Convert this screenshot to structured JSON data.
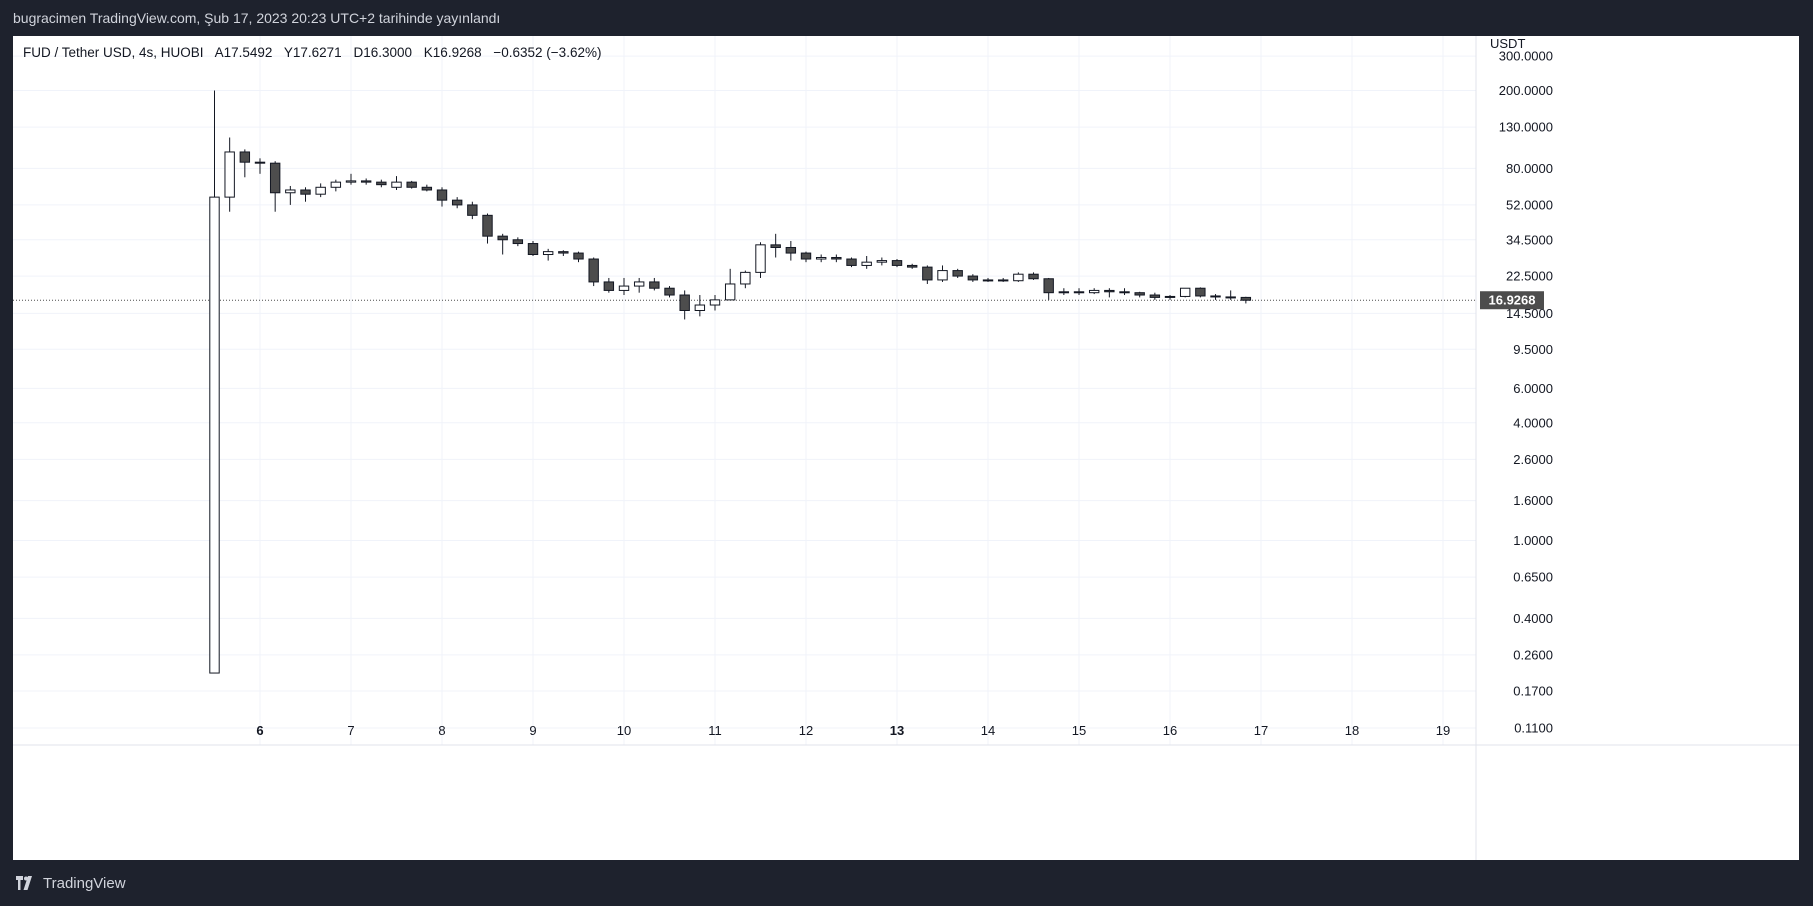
{
  "caption": "bugracimen TradingView.com, Şub 17, 2023 20:23 UTC+2 tarihinde yayınlandı",
  "legend": {
    "symbol": "FUD / Tether USD, 4s, HUOBI",
    "open": "A17.5492",
    "high": "Y17.6271",
    "low": "D16.3000",
    "close": "K16.9268",
    "change": "−0.6352 (−3.62%)"
  },
  "footer": {
    "brand": "TradingView"
  },
  "colors": {
    "up_fill": "#ffffff",
    "down_fill": "#4d4d4d",
    "wick": "#131722",
    "grid": "#f0f3fa",
    "axis_text": "#131722",
    "price_tag": "#4d4d4d"
  },
  "chart_data": {
    "type": "candlestick",
    "scale": "log",
    "currency_label": "USDT",
    "ylim": [
      0.09,
      380
    ],
    "y_ticks": [
      "300.0000",
      "200.0000",
      "130.0000",
      "80.0000",
      "52.0000",
      "34.5000",
      "22.5000",
      "14.5000",
      "9.5000",
      "6.0000",
      "4.0000",
      "2.6000",
      "1.6000",
      "1.0000",
      "0.6500",
      "0.4000",
      "0.2600",
      "0.1700",
      "0.1100"
    ],
    "x_labels": [
      {
        "label": "6",
        "bold": true
      },
      {
        "label": "7",
        "bold": false
      },
      {
        "label": "8",
        "bold": false
      },
      {
        "label": "9",
        "bold": false
      },
      {
        "label": "10",
        "bold": false
      },
      {
        "label": "11",
        "bold": false
      },
      {
        "label": "12",
        "bold": false
      },
      {
        "label": "13",
        "bold": true
      },
      {
        "label": "14",
        "bold": false
      },
      {
        "label": "15",
        "bold": false
      },
      {
        "label": "16",
        "bold": false
      },
      {
        "label": "17",
        "bold": false
      },
      {
        "label": "18",
        "bold": false
      },
      {
        "label": "19",
        "bold": false
      }
    ],
    "x_start_day": 5.5,
    "candle_step_day": 0.16667,
    "last_price": "16.9268",
    "last_value": 16.9268,
    "candles": [
      [
        0.21,
        200,
        0.21,
        57
      ],
      [
        57,
        115,
        48,
        97
      ],
      [
        97,
        100,
        72,
        86
      ],
      [
        86,
        90,
        75,
        85
      ],
      [
        85,
        87,
        48,
        60
      ],
      [
        60,
        65,
        52,
        62
      ],
      [
        62,
        64,
        54,
        59
      ],
      [
        59,
        67,
        57,
        64
      ],
      [
        64,
        70,
        61,
        68
      ],
      [
        68,
        75,
        66,
        69
      ],
      [
        69,
        71,
        66,
        68
      ],
      [
        68,
        70,
        64,
        66
      ],
      [
        64,
        73,
        62,
        68
      ],
      [
        68,
        69,
        63,
        64
      ],
      [
        64,
        66,
        61,
        62
      ],
      [
        62,
        64,
        51,
        55
      ],
      [
        55,
        57,
        50,
        52
      ],
      [
        52,
        54,
        44,
        46
      ],
      [
        46,
        47,
        33,
        36
      ],
      [
        36,
        37,
        29,
        34.5
      ],
      [
        34.5,
        35.5,
        32,
        33
      ],
      [
        33,
        34,
        28.5,
        29
      ],
      [
        29,
        31,
        27,
        30
      ],
      [
        30,
        30.5,
        28.5,
        29.5
      ],
      [
        29.5,
        30,
        26.5,
        27.5
      ],
      [
        27.5,
        28,
        20,
        21
      ],
      [
        21,
        22,
        18.5,
        19
      ],
      [
        19,
        22,
        18,
        20
      ],
      [
        20,
        22,
        18.5,
        21
      ],
      [
        21,
        22,
        19,
        19.5
      ],
      [
        19.5,
        20,
        17.5,
        18
      ],
      [
        18,
        19,
        13.5,
        15
      ],
      [
        15,
        18,
        14,
        16
      ],
      [
        16,
        18,
        15,
        17
      ],
      [
        17,
        24.5,
        17,
        20.5
      ],
      [
        20.5,
        24,
        19.5,
        23.5
      ],
      [
        23.5,
        33.5,
        22,
        32.5
      ],
      [
        32.5,
        37,
        28,
        31.5
      ],
      [
        31.5,
        34,
        27,
        29.5
      ],
      [
        29.5,
        30,
        26.5,
        27.5
      ],
      [
        27.5,
        29,
        26.5,
        28
      ],
      [
        28,
        29,
        26.5,
        27.5
      ],
      [
        27.5,
        28,
        25,
        25.5
      ],
      [
        25.5,
        28.5,
        24.5,
        26.5
      ],
      [
        26.5,
        28,
        25.5,
        27
      ],
      [
        27,
        27.5,
        25,
        25.5
      ],
      [
        25.5,
        26,
        24.5,
        25
      ],
      [
        25,
        25.5,
        20.5,
        21.5
      ],
      [
        21.5,
        25.5,
        21,
        24
      ],
      [
        24,
        24.5,
        22,
        22.5
      ],
      [
        22.5,
        23,
        21,
        21.5
      ],
      [
        21.5,
        22,
        21,
        21.5
      ],
      [
        21.5,
        22,
        21,
        21.3
      ],
      [
        21.3,
        23.5,
        21,
        23
      ],
      [
        23,
        23.5,
        21.5,
        21.8
      ],
      [
        21.8,
        22,
        17,
        18.5
      ],
      [
        18.5,
        19.5,
        18,
        18.7
      ],
      [
        18.7,
        19.5,
        18,
        18.5
      ],
      [
        18.5,
        19.5,
        18.2,
        19
      ],
      [
        19,
        19.5,
        17.5,
        18.7
      ],
      [
        18.7,
        19.5,
        18,
        18.5
      ],
      [
        18.5,
        18.7,
        17.5,
        18
      ],
      [
        18,
        18.5,
        17,
        17.5
      ],
      [
        17.5,
        18,
        17,
        17.7
      ],
      [
        17.7,
        19.5,
        17.5,
        19.5
      ],
      [
        19.5,
        19.7,
        17.5,
        17.8
      ],
      [
        17.8,
        18.2,
        17,
        17.6
      ],
      [
        17.6,
        19,
        17,
        17.5
      ],
      [
        17.5,
        17.63,
        16.3,
        16.93
      ]
    ]
  }
}
